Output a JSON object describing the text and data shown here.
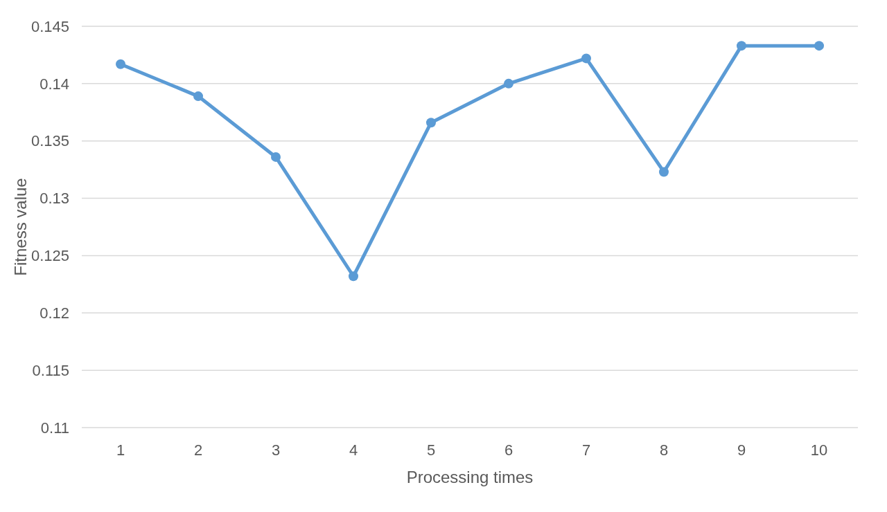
{
  "chart_data": {
    "type": "line",
    "xlabel": "Processing times",
    "ylabel": "Fitness value",
    "categories": [
      "1",
      "2",
      "3",
      "4",
      "5",
      "6",
      "7",
      "8",
      "9",
      "10"
    ],
    "series": [
      {
        "color": "#5b9bd5",
        "values": [
          0.1417,
          0.1389,
          0.1336,
          0.1232,
          0.1366,
          0.14,
          0.1422,
          0.1323,
          0.1433,
          0.1433
        ]
      }
    ],
    "ylim": [
      0.11,
      0.145
    ],
    "yticks": [
      0.11,
      0.115,
      0.12,
      0.125,
      0.13,
      0.135,
      0.14,
      0.145
    ],
    "grid": "y",
    "marker": "circle",
    "line_style": "solid"
  }
}
